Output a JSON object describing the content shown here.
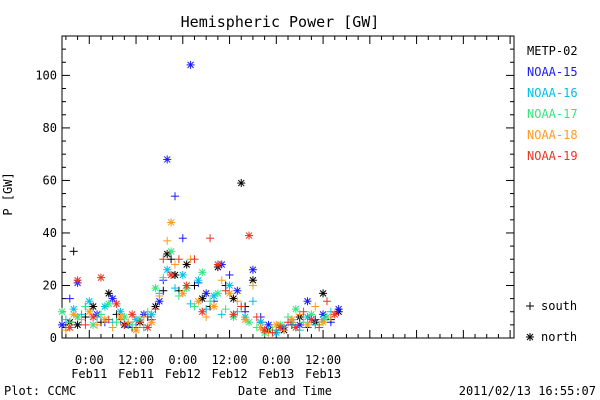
{
  "chart_data": {
    "type": "scatter",
    "title": "Hemispheric Power [GW]",
    "xlabel": "Date and Time",
    "ylabel": "P [GW]",
    "x_range_hours": [
      -7,
      109
    ],
    "ylim": [
      0,
      115
    ],
    "y_ticks": [
      0,
      20,
      40,
      60,
      80,
      100
    ],
    "x_ticks": [
      {
        "hour": 0,
        "time": "0:00",
        "date": "Feb11"
      },
      {
        "hour": 12,
        "time": "12:00",
        "date": "Feb11"
      },
      {
        "hour": 24,
        "time": "0:00",
        "date": "Feb12"
      },
      {
        "hour": 36,
        "time": "12:00",
        "date": "Feb12"
      },
      {
        "hour": 48,
        "time": "0:00",
        "date": "Feb13"
      },
      {
        "hour": 60,
        "time": "12:00",
        "date": "Feb13"
      }
    ],
    "legend": {
      "placement": "right",
      "items": [
        {
          "name": "METP-02",
          "color": "#000000"
        },
        {
          "name": "NOAA-15",
          "color": "#1a1aff"
        },
        {
          "name": "NOAA-16",
          "color": "#00bfe6"
        },
        {
          "name": "NOAA-17",
          "color": "#33e680"
        },
        {
          "name": "NOAA-18",
          "color": "#ff9a1a"
        },
        {
          "name": "NOAA-19",
          "color": "#ee3322"
        }
      ],
      "markers": [
        {
          "symbol": "+",
          "label": "south"
        },
        {
          "symbol": "*",
          "label": "north"
        }
      ]
    },
    "series": [
      {
        "name": "METP-02",
        "points": [
          [
            -6,
            4,
            "+"
          ],
          [
            -5,
            6,
            "*"
          ],
          [
            -4,
            33,
            "+"
          ],
          [
            -3,
            5,
            "*"
          ],
          [
            -1,
            8,
            "+"
          ],
          [
            1,
            12,
            "*"
          ],
          [
            3,
            6,
            "+"
          ],
          [
            5,
            17,
            "*"
          ],
          [
            7,
            9,
            "+"
          ],
          [
            9,
            5,
            "*"
          ],
          [
            11,
            4,
            "+"
          ],
          [
            13,
            6,
            "*"
          ],
          [
            15,
            8,
            "+"
          ],
          [
            17,
            12,
            "*"
          ],
          [
            19,
            18,
            "+"
          ],
          [
            20,
            32,
            "*"
          ],
          [
            21,
            30,
            "+"
          ],
          [
            22,
            24,
            "*"
          ],
          [
            23,
            18,
            "+"
          ],
          [
            25,
            28,
            "*"
          ],
          [
            27,
            20,
            "+"
          ],
          [
            29,
            15,
            "*"
          ],
          [
            31,
            12,
            "+"
          ],
          [
            33,
            27,
            "*"
          ],
          [
            35,
            20,
            "+"
          ],
          [
            37,
            15,
            "*"
          ],
          [
            39,
            59,
            "*"
          ],
          [
            40,
            12,
            "+"
          ],
          [
            42,
            22,
            "*"
          ],
          [
            44,
            6,
            "+"
          ],
          [
            46,
            3,
            "*"
          ],
          [
            48,
            2,
            "+"
          ],
          [
            50,
            3,
            "*"
          ],
          [
            52,
            5,
            "+"
          ],
          [
            54,
            8,
            "*"
          ],
          [
            56,
            4,
            "+"
          ],
          [
            58,
            6,
            "*"
          ],
          [
            60,
            17,
            "*"
          ],
          [
            62,
            7,
            "+"
          ],
          [
            64,
            10,
            "*"
          ]
        ]
      },
      {
        "name": "NOAA-15",
        "points": [
          [
            -7,
            5,
            "*"
          ],
          [
            -5,
            15,
            "+"
          ],
          [
            -3,
            21,
            "*"
          ],
          [
            -1,
            12,
            "+"
          ],
          [
            2,
            9,
            "*"
          ],
          [
            4,
            6,
            "+"
          ],
          [
            6,
            15,
            "*"
          ],
          [
            8,
            7,
            "+"
          ],
          [
            10,
            5,
            "*"
          ],
          [
            12,
            4,
            "+"
          ],
          [
            14,
            9,
            "*"
          ],
          [
            16,
            7,
            "+"
          ],
          [
            18,
            14,
            "*"
          ],
          [
            19,
            22,
            "+"
          ],
          [
            20,
            68,
            "*"
          ],
          [
            22,
            54,
            "+"
          ],
          [
            24,
            38,
            "+"
          ],
          [
            26,
            104,
            "*"
          ],
          [
            28,
            21,
            "+"
          ],
          [
            30,
            17,
            "*"
          ],
          [
            32,
            14,
            "+"
          ],
          [
            34,
            28,
            "*"
          ],
          [
            36,
            24,
            "+"
          ],
          [
            38,
            18,
            "*"
          ],
          [
            40,
            10,
            "+"
          ],
          [
            42,
            26,
            "*"
          ],
          [
            44,
            8,
            "+"
          ],
          [
            46,
            5,
            "*"
          ],
          [
            48,
            3,
            "+"
          ],
          [
            50,
            4,
            "*"
          ],
          [
            52,
            7,
            "+"
          ],
          [
            54,
            5,
            "*"
          ],
          [
            56,
            14,
            "*"
          ],
          [
            58,
            7,
            "+"
          ],
          [
            60,
            9,
            "*"
          ],
          [
            62,
            6,
            "+"
          ],
          [
            64,
            11,
            "*"
          ]
        ]
      },
      {
        "name": "NOAA-16",
        "points": [
          [
            -6,
            7,
            "+"
          ],
          [
            -4,
            11,
            "*"
          ],
          [
            -2,
            9,
            "+"
          ],
          [
            0,
            14,
            "*"
          ],
          [
            2,
            8,
            "+"
          ],
          [
            4,
            12,
            "*"
          ],
          [
            6,
            6,
            "+"
          ],
          [
            8,
            10,
            "*"
          ],
          [
            10,
            5,
            "+"
          ],
          [
            12,
            7,
            "*"
          ],
          [
            14,
            4,
            "+"
          ],
          [
            16,
            9,
            "*"
          ],
          [
            18,
            17,
            "+"
          ],
          [
            20,
            26,
            "*"
          ],
          [
            22,
            19,
            "+"
          ],
          [
            24,
            24,
            "*"
          ],
          [
            26,
            13,
            "+"
          ],
          [
            28,
            22,
            "*"
          ],
          [
            30,
            11,
            "+"
          ],
          [
            32,
            16,
            "*"
          ],
          [
            34,
            9,
            "+"
          ],
          [
            36,
            20,
            "*"
          ],
          [
            38,
            10,
            "+"
          ],
          [
            40,
            8,
            "*"
          ],
          [
            42,
            14,
            "+"
          ],
          [
            44,
            6,
            "*"
          ],
          [
            46,
            3,
            "+"
          ],
          [
            48,
            2,
            "*"
          ],
          [
            50,
            4,
            "+"
          ],
          [
            52,
            6,
            "*"
          ],
          [
            54,
            3,
            "+"
          ],
          [
            56,
            8,
            "*"
          ],
          [
            58,
            5,
            "+"
          ],
          [
            60,
            7,
            "*"
          ],
          [
            62,
            10,
            "+"
          ]
        ]
      },
      {
        "name": "NOAA-17",
        "points": [
          [
            -7,
            10,
            "*"
          ],
          [
            -5,
            6,
            "+"
          ],
          [
            -3,
            8,
            "*"
          ],
          [
            -1,
            12,
            "+"
          ],
          [
            1,
            5,
            "*"
          ],
          [
            3,
            9,
            "+"
          ],
          [
            5,
            13,
            "*"
          ],
          [
            7,
            6,
            "+"
          ],
          [
            9,
            8,
            "*"
          ],
          [
            11,
            5,
            "+"
          ],
          [
            13,
            7,
            "*"
          ],
          [
            15,
            10,
            "+"
          ],
          [
            17,
            19,
            "*"
          ],
          [
            19,
            23,
            "+"
          ],
          [
            21,
            33,
            "*"
          ],
          [
            23,
            16,
            "+"
          ],
          [
            25,
            19,
            "*"
          ],
          [
            27,
            12,
            "+"
          ],
          [
            29,
            25,
            "*"
          ],
          [
            31,
            14,
            "+"
          ],
          [
            33,
            17,
            "*"
          ],
          [
            35,
            11,
            "+"
          ],
          [
            37,
            8,
            "*"
          ],
          [
            39,
            12,
            "+"
          ],
          [
            41,
            6,
            "*"
          ],
          [
            43,
            4,
            "+"
          ],
          [
            45,
            2,
            "*"
          ],
          [
            47,
            3,
            "+"
          ],
          [
            49,
            5,
            "*"
          ],
          [
            51,
            8,
            "+"
          ],
          [
            53,
            11,
            "*"
          ],
          [
            55,
            6,
            "+"
          ],
          [
            57,
            9,
            "*"
          ],
          [
            59,
            5,
            "+"
          ],
          [
            61,
            8,
            "*"
          ]
        ]
      },
      {
        "name": "NOAA-18",
        "points": [
          [
            -6,
            3,
            "+"
          ],
          [
            -4,
            9,
            "*"
          ],
          [
            -2,
            7,
            "+"
          ],
          [
            0,
            10,
            "*"
          ],
          [
            2,
            5,
            "+"
          ],
          [
            4,
            7,
            "*"
          ],
          [
            6,
            4,
            "+"
          ],
          [
            8,
            8,
            "*"
          ],
          [
            10,
            6,
            "+"
          ],
          [
            12,
            3,
            "*"
          ],
          [
            14,
            8,
            "+"
          ],
          [
            16,
            6,
            "*"
          ],
          [
            18,
            16,
            "+"
          ],
          [
            20,
            37,
            "+"
          ],
          [
            21,
            44,
            "*"
          ],
          [
            22,
            28,
            "+"
          ],
          [
            24,
            17,
            "*"
          ],
          [
            26,
            30,
            "+"
          ],
          [
            28,
            14,
            "*"
          ],
          [
            30,
            8,
            "+"
          ],
          [
            32,
            12,
            "*"
          ],
          [
            34,
            22,
            "+"
          ],
          [
            36,
            17,
            "*"
          ],
          [
            38,
            14,
            "+"
          ],
          [
            40,
            7,
            "*"
          ],
          [
            42,
            20,
            "+"
          ],
          [
            44,
            4,
            "*"
          ],
          [
            46,
            2,
            "+"
          ],
          [
            48,
            5,
            "*"
          ],
          [
            50,
            3,
            "+"
          ],
          [
            52,
            7,
            "*"
          ],
          [
            54,
            9,
            "+"
          ],
          [
            56,
            5,
            "*"
          ],
          [
            58,
            12,
            "+"
          ],
          [
            60,
            6,
            "*"
          ],
          [
            62,
            8,
            "+"
          ]
        ]
      },
      {
        "name": "NOAA-19",
        "points": [
          [
            -5,
            4,
            "*"
          ],
          [
            -3,
            22,
            "*"
          ],
          [
            -1,
            5,
            "+"
          ],
          [
            1,
            8,
            "*"
          ],
          [
            3,
            23,
            "*"
          ],
          [
            5,
            7,
            "+"
          ],
          [
            7,
            13,
            "*"
          ],
          [
            9,
            5,
            "+"
          ],
          [
            11,
            9,
            "*"
          ],
          [
            13,
            6,
            "+"
          ],
          [
            15,
            4,
            "*"
          ],
          [
            17,
            11,
            "+"
          ],
          [
            19,
            30,
            "+"
          ],
          [
            21,
            24,
            "*"
          ],
          [
            23,
            30,
            "+"
          ],
          [
            25,
            20,
            "*"
          ],
          [
            27,
            30,
            "+"
          ],
          [
            29,
            10,
            "*"
          ],
          [
            31,
            38,
            "+"
          ],
          [
            33,
            28,
            "*"
          ],
          [
            35,
            18,
            "+"
          ],
          [
            37,
            9,
            "*"
          ],
          [
            39,
            12,
            "+"
          ],
          [
            41,
            39,
            "*"
          ],
          [
            43,
            8,
            "+"
          ],
          [
            45,
            3,
            "*"
          ],
          [
            47,
            2,
            "+"
          ],
          [
            49,
            4,
            "*"
          ],
          [
            51,
            6,
            "+"
          ],
          [
            53,
            4,
            "*"
          ],
          [
            55,
            10,
            "+"
          ],
          [
            57,
            7,
            "*"
          ],
          [
            59,
            4,
            "+"
          ],
          [
            61,
            14,
            "+"
          ],
          [
            63,
            9,
            "*"
          ]
        ]
      }
    ]
  },
  "footer": {
    "plot_credit": "Plot: CCMC",
    "timestamp": "2011/02/13 16:55:07"
  }
}
